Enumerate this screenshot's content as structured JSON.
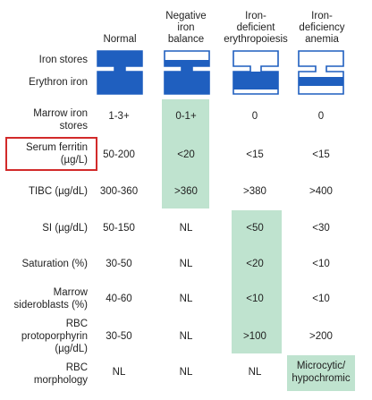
{
  "columns": [
    {
      "key": "normal",
      "label": "Normal"
    },
    {
      "key": "negative",
      "label": "Negative iron balance"
    },
    {
      "key": "deficient",
      "label": "Iron-deficient erythropoiesis"
    },
    {
      "key": "anemia",
      "label": "Iron-deficiency anemia"
    }
  ],
  "header": {
    "c1": "Normal",
    "c2": [
      "Negative",
      "iron",
      "balance"
    ],
    "c3": [
      "Iron-",
      "deficient",
      "erythropoiesis"
    ],
    "c4": [
      "Iron-",
      "deficiency",
      "anemia"
    ]
  },
  "diagram_labels": {
    "iron_stores": "Iron stores",
    "erythron_iron": "Erythron iron"
  },
  "diagram_icons": [
    {
      "stage": "normal",
      "iron_stores": "full",
      "erythron_iron": "full"
    },
    {
      "stage": "negative",
      "iron_stores": "partial",
      "erythron_iron": "full"
    },
    {
      "stage": "deficient",
      "iron_stores": "empty",
      "erythron_iron": "mostly full"
    },
    {
      "stage": "anemia",
      "iron_stores": "empty",
      "erythron_iron": "partial"
    }
  ],
  "rows": [
    {
      "label_lines": [
        "Marrow iron",
        "stores"
      ],
      "values": [
        "1-3+",
        "0-1+",
        "0",
        "0"
      ]
    },
    {
      "label_lines": [
        "Serum ferritin",
        "(µg/L)"
      ],
      "values": [
        "50-200",
        "<20",
        "<15",
        "<15"
      ]
    },
    {
      "label_lines": [
        "TIBC (µg/dL)"
      ],
      "values": [
        "300-360",
        ">360",
        ">380",
        ">400"
      ]
    },
    {
      "label_lines": [
        "SI (µg/dL)"
      ],
      "values": [
        "50-150",
        "NL",
        "<50",
        "<30"
      ]
    },
    {
      "label_lines": [
        "Saturation (%)"
      ],
      "values": [
        "30-50",
        "NL",
        "<20",
        "<10"
      ]
    },
    {
      "label_lines": [
        "Marrow",
        "sideroblasts (%)"
      ],
      "values": [
        "40-60",
        "NL",
        "<10",
        "<10"
      ]
    },
    {
      "label_lines": [
        "RBC",
        "protoporphyrin",
        "(µg/dL)"
      ],
      "values": [
        "30-50",
        "NL",
        ">100",
        ">200"
      ]
    },
    {
      "label_lines": [
        "RBC",
        "morphology"
      ],
      "values": [
        "NL",
        "NL",
        "NL",
        [
          "Microcytic/",
          "hypochromic"
        ]
      ]
    }
  ],
  "highlighted_row_label": "Serum ferritin",
  "colors": {
    "icon_blue": "#1f5fbf",
    "highlight_green": "#bfe3cf",
    "red_box": "#d22a2a"
  }
}
